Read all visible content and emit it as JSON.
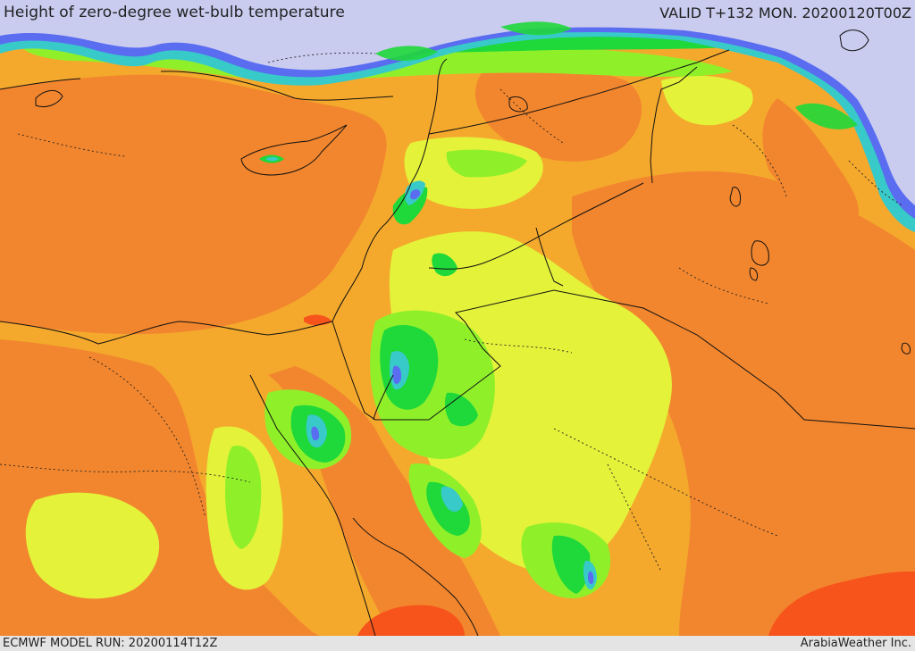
{
  "header": {
    "title": "Height of zero-degree wet-bulb temperature",
    "valid": "VALID T+132 MON. 20200120T00Z"
  },
  "footer": {
    "model_run": "ECMWF MODEL RUN: 20200114T12Z",
    "credit": "ArabiaWeather Inc."
  },
  "colors": {
    "lowest": "#c9cbef",
    "low_blue": "#5a6cf0",
    "teal": "#38c9c9",
    "green": "#1fd83a",
    "light_green": "#8ff02a",
    "yellow": "#e4f23a",
    "gold": "#f8b418",
    "orange": "#f2862e",
    "red_orange": "#f7541c"
  }
}
